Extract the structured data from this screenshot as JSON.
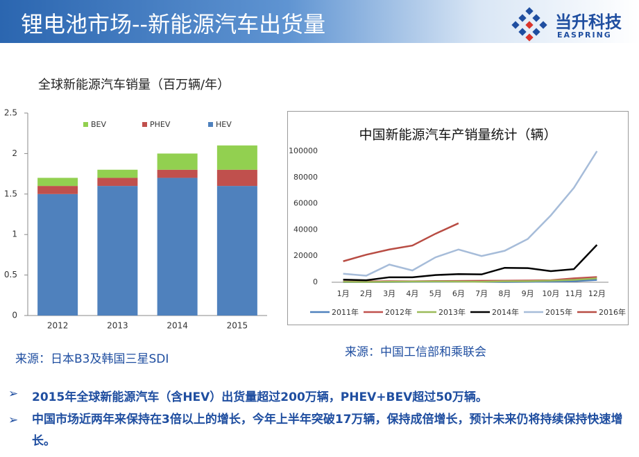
{
  "header": {
    "title": "锂电池市场--新能源汽车出货量",
    "logo_name": "当升科技",
    "logo_en": "EASPRING"
  },
  "chart_data": [
    {
      "type": "stacked-bar",
      "title": "全球新能源汽车销量（百万辆/年）",
      "categories": [
        "2012",
        "2013",
        "2014",
        "2015"
      ],
      "series": [
        {
          "name": "HEV",
          "color": "#4f81bd",
          "values": [
            1.5,
            1.6,
            1.7,
            1.6
          ]
        },
        {
          "name": "PHEV",
          "color": "#c0504d",
          "values": [
            0.1,
            0.1,
            0.1,
            0.2
          ]
        },
        {
          "name": "BEV",
          "color": "#92d050",
          "values": [
            0.1,
            0.1,
            0.2,
            0.3
          ]
        }
      ],
      "ylim": [
        0,
        2.5
      ],
      "yticks": [
        0,
        0.5,
        1,
        1.5,
        2,
        2.5
      ],
      "grid": false
    },
    {
      "type": "line",
      "title": "中国新能源汽车产销量统计（辆）",
      "categories": [
        "1月",
        "2月",
        "3月",
        "4月",
        "5月",
        "6月",
        "7月",
        "8月",
        "9月",
        "10月",
        "11月",
        "12月"
      ],
      "series": [
        {
          "name": "2011年",
          "color": "#4f81bd",
          "values": [
            100,
            100,
            200,
            300,
            400,
            500,
            300,
            200,
            300,
            500,
            800,
            1800
          ]
        },
        {
          "name": "2012年",
          "color": "#c0504d",
          "values": [
            500,
            600,
            800,
            700,
            900,
            1000,
            1100,
            1200,
            1300,
            1500,
            3000,
            4000
          ]
        },
        {
          "name": "2013年",
          "color": "#9bbb59",
          "values": [
            300,
            200,
            400,
            500,
            600,
            500,
            400,
            700,
            800,
            1200,
            1800,
            3000
          ]
        },
        {
          "name": "2014年",
          "color": "#000000",
          "values": [
            2000,
            1500,
            3800,
            3800,
            5500,
            6200,
            6000,
            11000,
            10800,
            8500,
            10000,
            28500
          ]
        },
        {
          "name": "2015年",
          "color": "#a6bcd9",
          "values": [
            6500,
            5000,
            13500,
            9000,
            19000,
            25000,
            20000,
            24000,
            33000,
            51000,
            72000,
            100000
          ]
        },
        {
          "name": "2016年",
          "color": "#b84c43",
          "values": [
            16000,
            21000,
            25000,
            28000,
            37000,
            45000,
            null,
            null,
            null,
            null,
            null,
            null
          ]
        }
      ],
      "ylim": [
        0,
        100000
      ],
      "yticks": [
        0,
        20000,
        40000,
        60000,
        80000,
        100000
      ],
      "grid": false
    }
  ],
  "sources": [
    "来源：日本B3及韩国三星SDI",
    "来源：中国工信部和乘联会"
  ],
  "bullets": [
    "2015年全球新能源汽车（含HEV）出货量超过200万辆，PHEV+BEV超过50万辆。",
    "中国市场近两年来保持在3倍以上的增长，今年上半年突破17万辆，保持成倍增长，预计未来仍将持续保持快速增长。"
  ]
}
